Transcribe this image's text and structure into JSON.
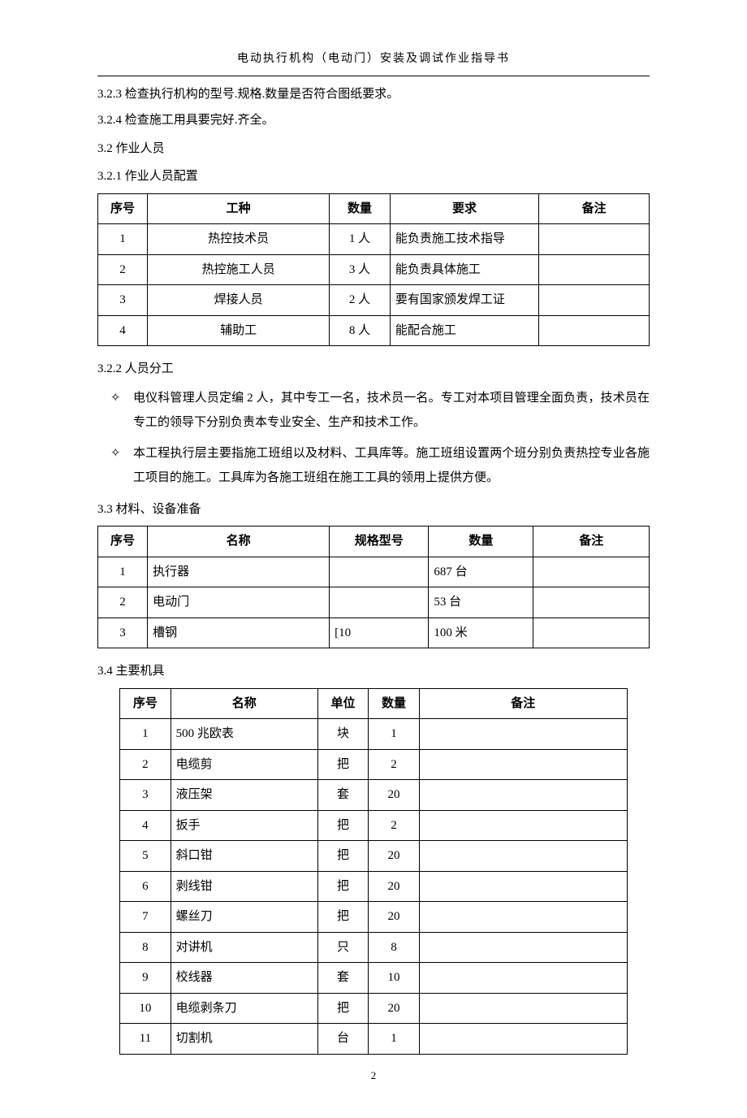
{
  "header": {
    "title": "电动执行机构（电动门）安装及调试作业指导书"
  },
  "paragraphs": {
    "p323": "3.2.3 检查执行机构的型号.规格.数量是否符合图纸要求。",
    "p324": "3.2.4 检查施工用具要完好.齐全。",
    "s32": "3.2 作业人员",
    "s321": "3.2.1 作业人员配置",
    "s322": "3.2.2 人员分工",
    "bullet1": "电仪科管理人员定编 2 人，其中专工一名，技术员一名。专工对本项目管理全面负责，技术员在专工的领导下分别负责本专业安全、生产和技术工作。",
    "bullet2": "本工程执行层主要指施工班组以及材料、工具库等。施工班组设置两个班分别负责热控专业各施工项目的施工。工具库为各施工班组在施工工具的领用上提供方便。",
    "s33": "3.3 材料、设备准备",
    "s34": "3.4 主要机具"
  },
  "personnelTable": {
    "headers": {
      "c1": "序号",
      "c2": "工种",
      "c3": "数量",
      "c4": "要求",
      "c5": "备注"
    },
    "widths": {
      "c1": "9%",
      "c2": "33%",
      "c3": "11%",
      "c4": "27%",
      "c5": "20%"
    },
    "rows": [
      {
        "c1": "1",
        "c2": "热控技术员",
        "c3": "1 人",
        "c4": "能负责施工技术指导",
        "c5": ""
      },
      {
        "c1": "2",
        "c2": "热控施工人员",
        "c3": "3 人",
        "c4": "能负责具体施工",
        "c5": ""
      },
      {
        "c1": "3",
        "c2": "焊接人员",
        "c3": "2 人",
        "c4": "要有国家颁发焊工证",
        "c5": ""
      },
      {
        "c1": "4",
        "c2": "辅助工",
        "c3": "8 人",
        "c4": "能配合施工",
        "c5": ""
      }
    ]
  },
  "materialsTable": {
    "headers": {
      "c1": "序号",
      "c2": "名称",
      "c3": "规格型号",
      "c4": "数量",
      "c5": "备注"
    },
    "widths": {
      "c1": "9%",
      "c2": "33%",
      "c3": "18%",
      "c4": "19%",
      "c5": "21%"
    },
    "rows": [
      {
        "c1": "1",
        "c2": "执行器",
        "c3": "",
        "c4": "687 台",
        "c5": ""
      },
      {
        "c1": "2",
        "c2": "电动门",
        "c3": "",
        "c4": "53 台",
        "c5": ""
      },
      {
        "c1": "3",
        "c2": "槽钢",
        "c3": "[10",
        "c4": "100 米",
        "c5": ""
      }
    ]
  },
  "toolsTable": {
    "headers": {
      "c1": "序号",
      "c2": "名称",
      "c3": "单位",
      "c4": "数量",
      "c5": "备注"
    },
    "widths": {
      "c1": "10%",
      "c2": "29%",
      "c3": "10%",
      "c4": "10%",
      "c5": "41%"
    },
    "rows": [
      {
        "c1": "1",
        "c2": "500 兆欧表",
        "c3": "块",
        "c4": "1",
        "c5": ""
      },
      {
        "c1": "2",
        "c2": "电缆剪",
        "c3": "把",
        "c4": "2",
        "c5": ""
      },
      {
        "c1": "3",
        "c2": "液压架",
        "c3": "套",
        "c4": "20",
        "c5": ""
      },
      {
        "c1": "4",
        "c2": "扳手",
        "c3": "把",
        "c4": "2",
        "c5": ""
      },
      {
        "c1": "5",
        "c2": "斜口钳",
        "c3": "把",
        "c4": "20",
        "c5": ""
      },
      {
        "c1": "6",
        "c2": "剥线钳",
        "c3": "把",
        "c4": "20",
        "c5": ""
      },
      {
        "c1": "7",
        "c2": "螺丝刀",
        "c3": "把",
        "c4": "20",
        "c5": ""
      },
      {
        "c1": "8",
        "c2": "对讲机",
        "c3": "只",
        "c4": "8",
        "c5": ""
      },
      {
        "c1": "9",
        "c2": "校线器",
        "c3": "套",
        "c4": "10",
        "c5": ""
      },
      {
        "c1": "10",
        "c2": "电缆剥条刀",
        "c3": "把",
        "c4": "20",
        "c5": ""
      },
      {
        "c1": "11",
        "c2": "切割机",
        "c3": "台",
        "c4": "1",
        "c5": ""
      }
    ]
  },
  "pageNumber": "2"
}
